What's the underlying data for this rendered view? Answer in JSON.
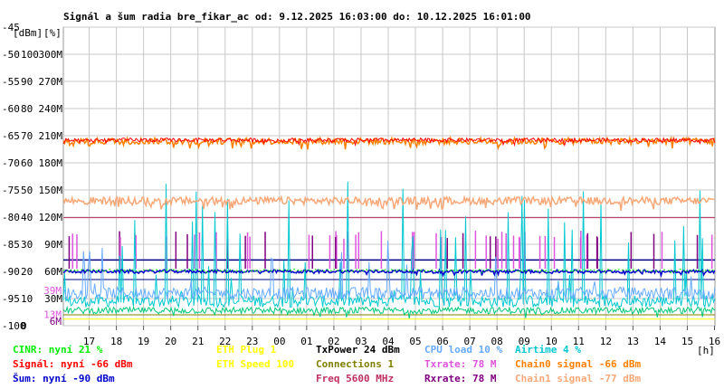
{
  "chart_data": {
    "type": "line",
    "title": "Signál a šum radia bre_fikar_ac od: 9.12.2025 16:03:00 do: 10.12.2025 16:01:00",
    "units": {
      "left": "[dBm]",
      "mid": "[%]",
      "xunit": "[h]"
    },
    "ylim": [
      -100,
      -45
    ],
    "y_ticks_dbm": [
      "-45",
      "-50",
      "-55",
      "-60",
      "-65",
      "-70",
      "-75",
      "-80",
      "-85",
      "-90",
      "-95",
      "-100"
    ],
    "y_ticks_pct": [
      "",
      "100",
      "90",
      "80",
      "70",
      "60",
      "50",
      "40",
      "30",
      "20",
      "10",
      "0"
    ],
    "y_ticks_rate": [
      "",
      "300M",
      "270M",
      "240M",
      "210M",
      "180M",
      "150M",
      "120M",
      "90M",
      "60M",
      "30M",
      ""
    ],
    "x_ticks": [
      "17",
      "18",
      "19",
      "20",
      "21",
      "22",
      "23",
      "00",
      "01",
      "02",
      "03",
      "04",
      "05",
      "06",
      "07",
      "08",
      "09",
      "10",
      "11",
      "12",
      "13",
      "14",
      "15",
      "16"
    ],
    "x_range_hours": [
      16.05,
      40.0167
    ],
    "side_labels": [
      {
        "text": "39M",
        "color": "#dd55dd",
        "at": -93.5
      },
      {
        "text": "13M",
        "color": "#dd55dd",
        "at": -97.9
      },
      {
        "text": "6M",
        "color": "#800080",
        "at": -99.2
      }
    ],
    "series": [
      {
        "name": "Signál",
        "color": "#ff0000",
        "level": -65.8,
        "noise": 0.6
      },
      {
        "name": "Chain0 signal",
        "color": "#ff8000",
        "level": -66.0,
        "noise": 0.6
      },
      {
        "name": "Chain1 signal",
        "color": "#f7a878",
        "level": -77.0,
        "noise": 0.7
      },
      {
        "name": "Šum",
        "color": "#0000cc",
        "level": -90.0,
        "noise": 0.3
      },
      {
        "name": "CINR",
        "color": "#00ee00",
        "level": -89.8,
        "noise": 0.2
      },
      {
        "name": "Txrate",
        "color": "#dd55dd",
        "level": -86.0
      },
      {
        "name": "Rxrate",
        "color": "#800080",
        "level": -86.5
      },
      {
        "name": "CPU load",
        "color": "#66aaff",
        "level": -94.0
      },
      {
        "name": "Airtime",
        "color": "#00c8d0",
        "level": -97.5
      },
      {
        "name": "Freq",
        "color": "#c03060",
        "level": -80.1
      },
      {
        "name": "ETH Plug",
        "color": "#ffff00",
        "level": -98.8
      },
      {
        "name": "Connections",
        "color": "#808000",
        "level": -98.0
      },
      {
        "name": "TxPower",
        "color": "#000080",
        "level": -87.9
      }
    ]
  },
  "legend": {
    "col1": [
      {
        "text": "CINR: nyní 21 %",
        "color": "#00ee00"
      },
      {
        "text": "Signál: nyní -66 dBm",
        "color": "#ff0000"
      },
      {
        "text": "Šum: nyní -90 dBm",
        "color": "#0000cc"
      }
    ],
    "col2": [
      {
        "text": "ETH Plug 1",
        "color": "#ffff00"
      },
      {
        "text": "ETH Speed 100",
        "color": "#ffff00"
      }
    ],
    "col3": [
      {
        "text": "TxPower 24 dBm",
        "color": "#000000"
      },
      {
        "text": "Connections 1",
        "color": "#808000"
      },
      {
        "text": "Freq 5600 MHz",
        "color": "#c03060"
      }
    ],
    "col4": [
      {
        "text": "CPU load 10 %",
        "color": "#66aaff"
      },
      {
        "text": "Txrate: 78 M",
        "color": "#dd55dd"
      },
      {
        "text": "Rxrate: 78 M",
        "color": "#800080"
      }
    ],
    "col5": [
      {
        "text": "Airtime 4 %",
        "color": "#00c8d0"
      },
      {
        "text": "Chain0 signal -66 dBm",
        "color": "#ff8000"
      },
      {
        "text": "Chain1 signal -77 dBm",
        "color": "#f7a878"
      }
    ]
  }
}
